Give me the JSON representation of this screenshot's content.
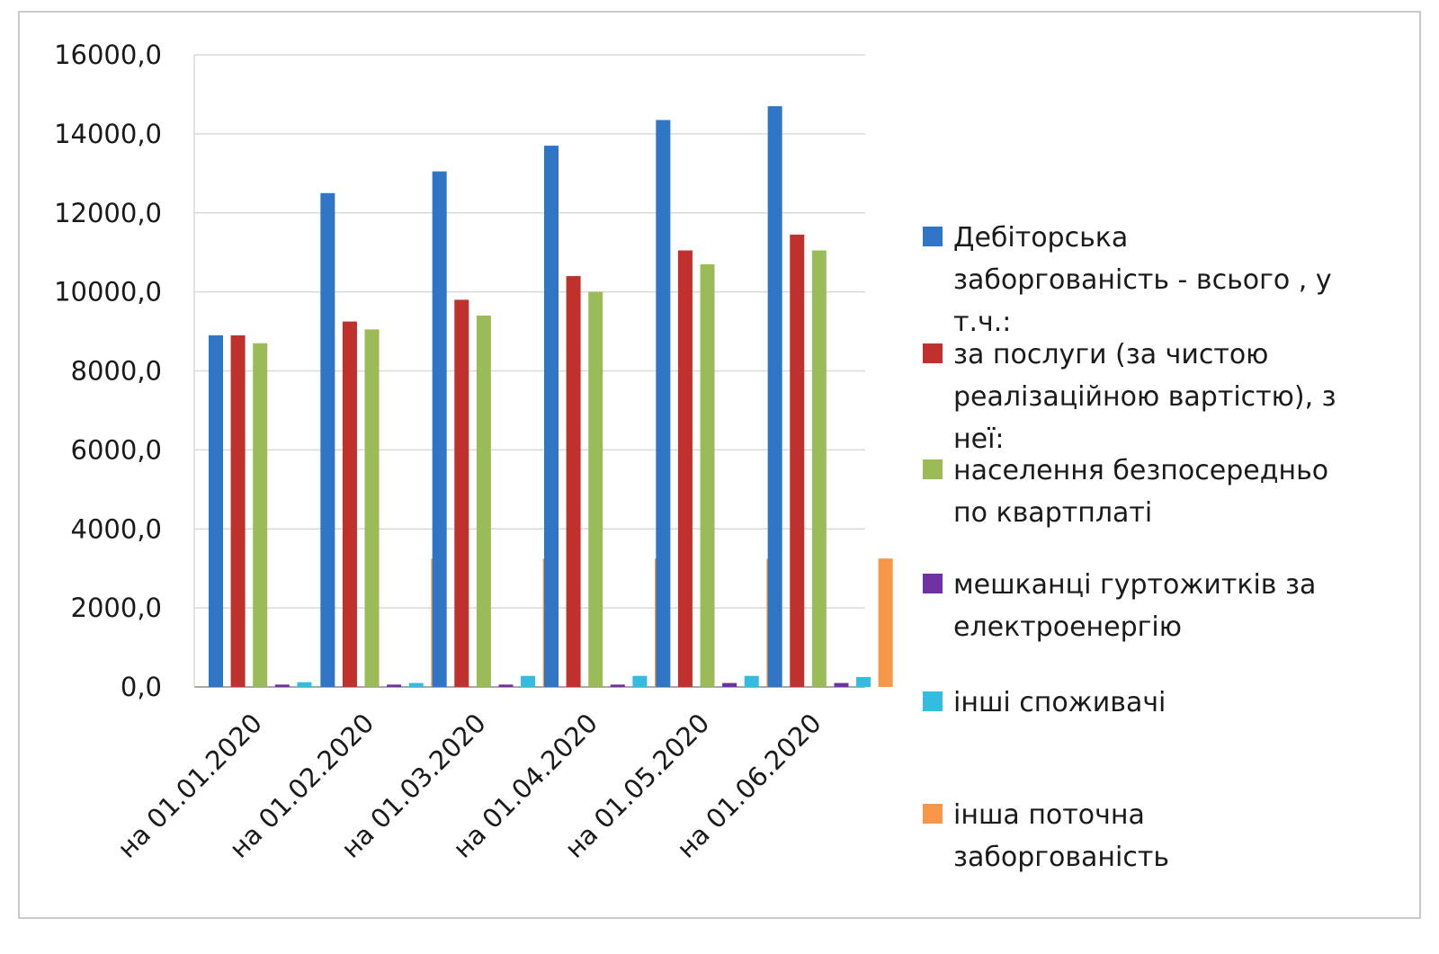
{
  "chart_data": {
    "type": "bar",
    "title": "",
    "xlabel": "",
    "ylabel": "",
    "ylim": [
      0,
      16000
    ],
    "yticks": [
      "0,0",
      "2000,0",
      "4000,0",
      "6000,0",
      "8000,0",
      "10000,0",
      "12000,0",
      "14000,0",
      "16000,0"
    ],
    "grid": true,
    "legend_position": "right",
    "categories": [
      "на 01.01.2020",
      "на 01.02.2020",
      "на 01.03.2020",
      "на 01.04.2020",
      "на 01.05.2020",
      "на 01.06.2020"
    ],
    "series": [
      {
        "name": "Дебіторська заборгованість - всього , у т.ч.:",
        "color": "#2e75c6",
        "values": [
          8900,
          12500,
          13050,
          13700,
          14350,
          14700
        ]
      },
      {
        "name": "за послуги (за чистою реалізаційною вартістю), з неї:",
        "color": "#c0302c",
        "values": [
          8900,
          9250,
          9800,
          10400,
          11050,
          11450
        ]
      },
      {
        "name": "населення безпосередньо по квартплаті",
        "color": "#9bbb59",
        "values": [
          8700,
          9050,
          9400,
          10000,
          10700,
          11050
        ]
      },
      {
        "name": "мешканці гуртожитків за електроенергію",
        "color": "#7030a0",
        "values": [
          60,
          60,
          60,
          60,
          100,
          100
        ]
      },
      {
        "name": "інші споживачі",
        "color": "#33bbe0",
        "values": [
          120,
          100,
          280,
          280,
          280,
          250
        ]
      },
      {
        "name": "інша поточна заборгованість",
        "color": "#f79646",
        "values": [
          0,
          3250,
          3250,
          3250,
          3250,
          3250
        ]
      }
    ],
    "legend_lines": [
      [
        "Дебіторська",
        "заборгованість - всього , у",
        "т.ч.:"
      ],
      [
        "за послуги (за чистою",
        "реалізаційною вартістю), з",
        "неї:"
      ],
      [
        "населення безпосередньо",
        "по квартплаті"
      ],
      [
        "мешканці гуртожитків за",
        "електроенергію"
      ],
      [
        "інші споживачі"
      ],
      [
        "інша поточна",
        "заборгованість"
      ]
    ]
  }
}
